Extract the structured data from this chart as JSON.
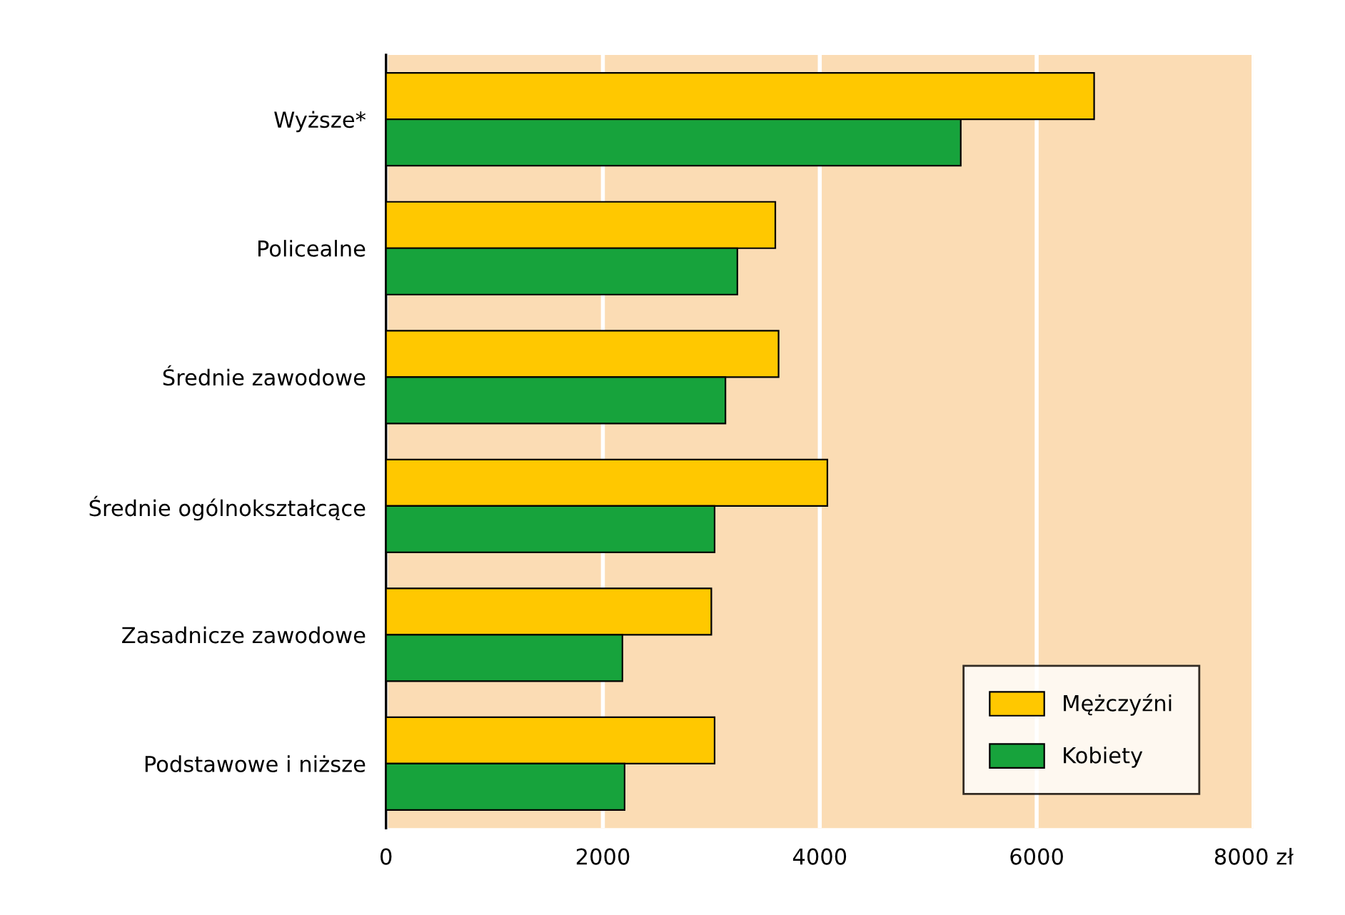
{
  "chart_data": {
    "type": "bar",
    "orientation": "horizontal",
    "categories": [
      "Wyższe*",
      "Policealne",
      "Średnie zawodowe",
      "Średnie ogólnokształcące",
      "Zasadnicze zawodowe",
      "Podstawowe i niższe"
    ],
    "series": [
      {
        "name": "Mężczyźni",
        "color": "#ffc800",
        "values": [
          6530,
          3590,
          3620,
          4070,
          3000,
          3030
        ]
      },
      {
        "name": "Kobiety",
        "color": "#17a33c",
        "values": [
          5300,
          3240,
          3130,
          3030,
          2180,
          2200
        ]
      }
    ],
    "xlim": [
      0,
      8000
    ],
    "xticks": [
      0,
      2000,
      4000,
      6000,
      {
        "value": 8000,
        "label": "8000 zł"
      }
    ],
    "grid": "x",
    "legend": "bottom right"
  }
}
